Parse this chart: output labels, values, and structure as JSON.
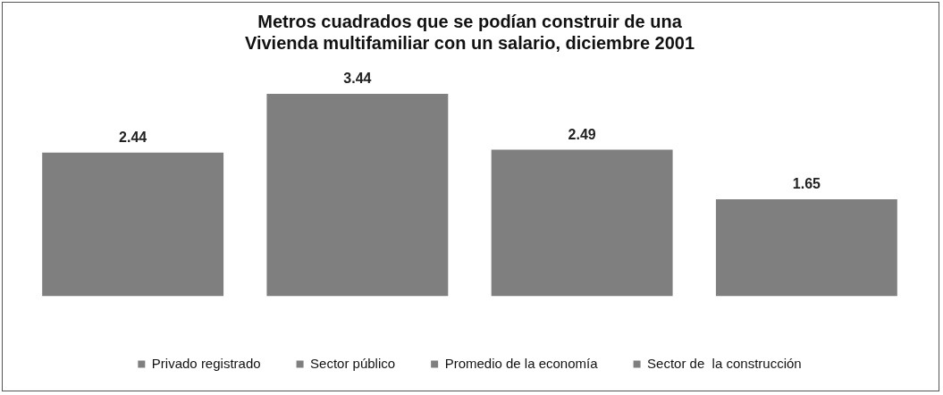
{
  "chart_data": {
    "type": "bar",
    "title": "Metros cuadrados que se podían construir de una\nVivienda multifamiliar con un salario, diciembre 2001",
    "categories": [
      null,
      null,
      null,
      null
    ],
    "stacked": true,
    "tick_labels": "x",
    "data_labels": true,
    "legend": "bottom",
    "grid": false,
    "series": [
      {
        "name": "Privado registrado",
        "color": "#7f7f7f",
        "values": [
          2.44,
          null,
          null,
          null
        ]
      },
      {
        "name": "Sector público",
        "color": "#7f7f7f",
        "values": [
          null,
          3.44,
          null,
          null
        ]
      },
      {
        "name": "Promedio de la economía",
        "color": "#7f7f7f",
        "values": [
          null,
          null,
          2.49,
          null
        ]
      },
      {
        "name": "Sector de  la construcción",
        "color": "#7f7f7f",
        "values": [
          null,
          null,
          null,
          1.65
        ]
      }
    ]
  }
}
